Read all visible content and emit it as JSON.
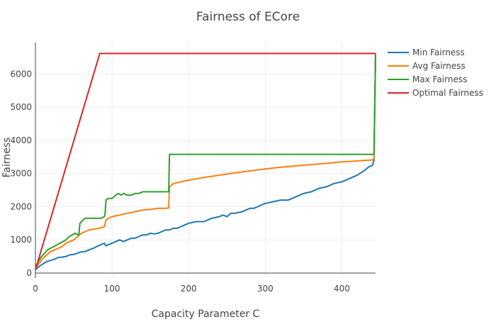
{
  "chart_data": {
    "type": "line",
    "title": "Fairness of ECore",
    "xlabel": "Capacity Parameter C",
    "ylabel": "Fairness",
    "xlim": [
      0,
      444
    ],
    "ylim": [
      -150,
      6950
    ],
    "xticks": [
      0,
      100,
      200,
      300,
      400
    ],
    "yticks": [
      0,
      1000,
      2000,
      3000,
      4000,
      5000,
      6000
    ],
    "grid": true,
    "legend_position": "right",
    "colors": {
      "Min Fairness": "#1f77b4",
      "Avg Fairness": "#ff7f0e",
      "Max Fairness": "#2ca02c",
      "Optimal Fairness": "#d62728"
    },
    "series": [
      {
        "name": "Min Fairness",
        "x": [
          0,
          5,
          10,
          15,
          20,
          25,
          30,
          35,
          40,
          45,
          50,
          55,
          60,
          65,
          70,
          75,
          80,
          85,
          90,
          92,
          95,
          100,
          105,
          110,
          115,
          120,
          125,
          130,
          135,
          140,
          145,
          150,
          155,
          160,
          165,
          170,
          175,
          180,
          185,
          190,
          195,
          200,
          210,
          220,
          225,
          230,
          240,
          245,
          250,
          255,
          260,
          270,
          275,
          280,
          285,
          290,
          295,
          300,
          310,
          320,
          330,
          335,
          340,
          350,
          360,
          370,
          380,
          390,
          400,
          410,
          420,
          430,
          435,
          440,
          442,
          444
        ],
        "y": [
          100,
          200,
          280,
          350,
          380,
          420,
          470,
          480,
          500,
          550,
          560,
          600,
          640,
          650,
          700,
          740,
          800,
          850,
          900,
          820,
          850,
          900,
          950,
          1000,
          950,
          1000,
          1050,
          1050,
          1100,
          1150,
          1150,
          1200,
          1180,
          1200,
          1250,
          1300,
          1300,
          1350,
          1350,
          1400,
          1450,
          1500,
          1550,
          1550,
          1600,
          1650,
          1700,
          1750,
          1700,
          1800,
          1800,
          1850,
          1900,
          1950,
          1950,
          2000,
          2050,
          2100,
          2150,
          2200,
          2200,
          2250,
          2300,
          2400,
          2450,
          2550,
          2600,
          2700,
          2750,
          2850,
          2950,
          3100,
          3200,
          3250,
          3400,
          6620
        ]
      },
      {
        "name": "Avg Fairness",
        "x": [
          0,
          5,
          10,
          15,
          20,
          25,
          30,
          35,
          40,
          45,
          50,
          55,
          60,
          65,
          70,
          75,
          80,
          85,
          90,
          92,
          95,
          100,
          110,
          120,
          130,
          140,
          150,
          160,
          170,
          174,
          175,
          180,
          190,
          200,
          220,
          240,
          260,
          280,
          300,
          320,
          340,
          360,
          380,
          400,
          420,
          440,
          442,
          444
        ],
        "y": [
          150,
          300,
          450,
          550,
          650,
          700,
          750,
          800,
          900,
          950,
          1000,
          1100,
          1200,
          1250,
          1300,
          1320,
          1340,
          1360,
          1400,
          1600,
          1650,
          1700,
          1750,
          1800,
          1850,
          1900,
          1920,
          1950,
          1950,
          1960,
          2600,
          2700,
          2750,
          2800,
          2880,
          2950,
          3020,
          3080,
          3140,
          3190,
          3230,
          3270,
          3310,
          3350,
          3380,
          3410,
          3450,
          6620
        ]
      },
      {
        "name": "Max Fairness",
        "x": [
          0,
          4,
          8,
          12,
          16,
          20,
          24,
          28,
          32,
          36,
          40,
          44,
          48,
          52,
          56,
          57,
          58,
          60,
          62,
          65,
          70,
          75,
          80,
          85,
          90,
          91,
          92,
          95,
          100,
          105,
          108,
          112,
          115,
          120,
          125,
          130,
          135,
          140,
          145,
          150,
          155,
          160,
          165,
          170,
          174,
          175,
          180,
          200,
          250,
          300,
          350,
          400,
          440,
          442,
          444
        ],
        "y": [
          200,
          350,
          500,
          600,
          700,
          750,
          800,
          850,
          900,
          950,
          1000,
          1100,
          1150,
          1200,
          1150,
          1200,
          1500,
          1550,
          1600,
          1650,
          1650,
          1650,
          1650,
          1650,
          1700,
          1800,
          2200,
          2250,
          2250,
          2350,
          2400,
          2350,
          2400,
          2350,
          2350,
          2400,
          2400,
          2450,
          2450,
          2450,
          2450,
          2450,
          2450,
          2450,
          2450,
          3580,
          3580,
          3580,
          3580,
          3580,
          3580,
          3580,
          3580,
          3580,
          6620
        ]
      },
      {
        "name": "Optimal Fairness",
        "x": [
          0,
          84,
          444
        ],
        "y": [
          100,
          6620,
          6620
        ]
      }
    ]
  }
}
